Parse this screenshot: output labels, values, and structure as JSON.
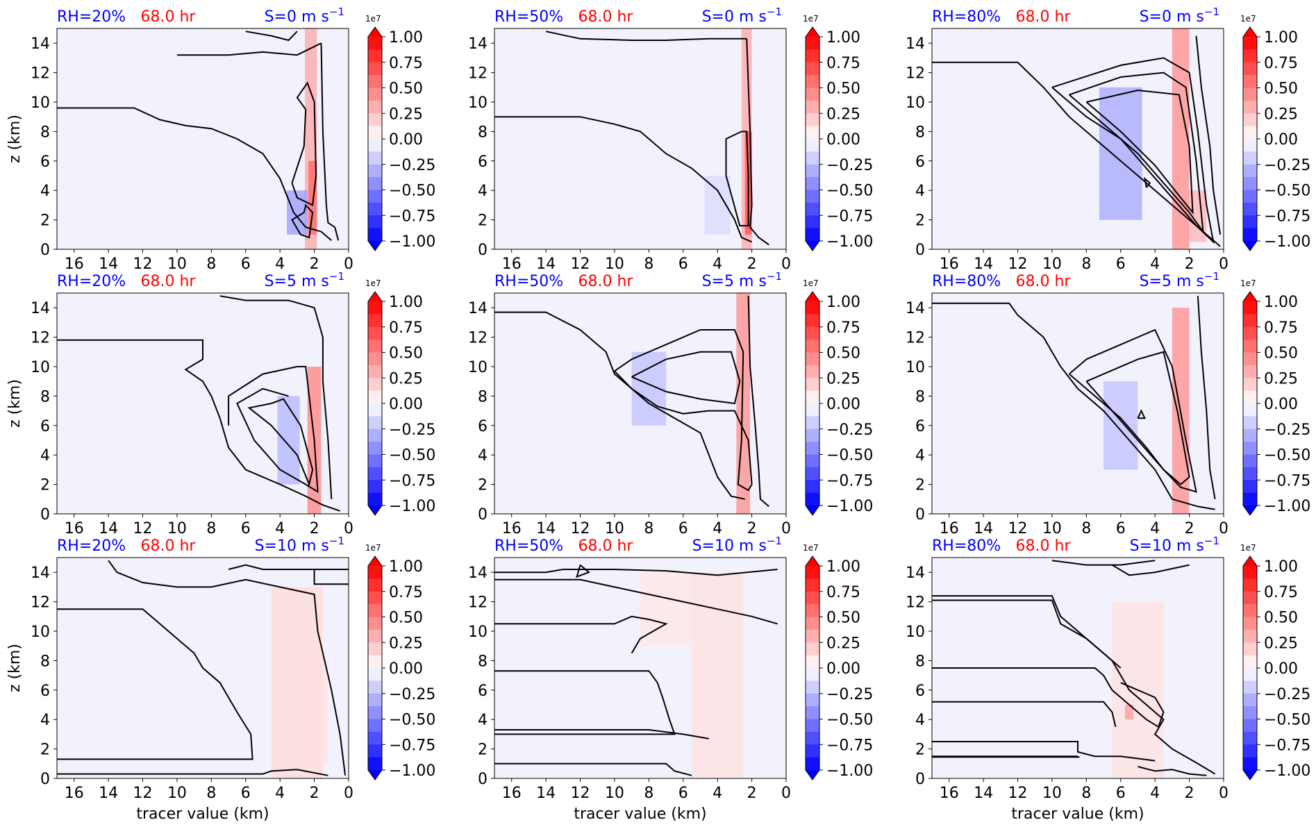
{
  "chart_data": {
    "type": "heatmap",
    "colors": {
      "negative": "#0000ff",
      "positive": "#ff0000",
      "background": "#f2f2fc",
      "contour": "#000000",
      "title_blue": "#0000ff",
      "title_red": "#ff0000"
    },
    "time_label": "68.0 hr",
    "xlabel": "tracer value (km)",
    "ylabel": "z (km)",
    "xlim": [
      17,
      0
    ],
    "ylim": [
      0,
      15
    ],
    "x_ticks": [
      "16",
      "14",
      "12",
      "10",
      "8",
      "6",
      "4",
      "2",
      "0"
    ],
    "y_ticks": [
      "0",
      "2",
      "4",
      "6",
      "8",
      "10",
      "12",
      "14"
    ],
    "colorbar": {
      "exponent": "1e7",
      "extend": "both",
      "ticks": [
        "1.00",
        "0.75",
        "0.50",
        "0.25",
        "0.00",
        "−0.25",
        "−0.50",
        "−0.75",
        "−1.00"
      ],
      "vmin": -1.0,
      "vmax": 1.0,
      "levels": 16
    },
    "panels": [
      {
        "rh": "RH=20%",
        "shear": "S=0 m s",
        "shear_exp": "−1"
      },
      {
        "rh": "RH=50%",
        "shear": "S=0 m s",
        "shear_exp": "−1"
      },
      {
        "rh": "RH=80%",
        "shear": "S=0 m s",
        "shear_exp": "−1"
      },
      {
        "rh": "RH=20%",
        "shear": "S=5 m s",
        "shear_exp": "−1"
      },
      {
        "rh": "RH=50%",
        "shear": "S=5 m s",
        "shear_exp": "−1"
      },
      {
        "rh": "RH=80%",
        "shear": "S=5 m s",
        "shear_exp": "−1"
      },
      {
        "rh": "RH=20%",
        "shear": "S=10 m s",
        "shear_exp": "−1"
      },
      {
        "rh": "RH=50%",
        "shear": "S=10 m s",
        "shear_exp": "−1"
      },
      {
        "rh": "RH=80%",
        "shear": "S=10 m s",
        "shear_exp": "−1"
      }
    ]
  }
}
